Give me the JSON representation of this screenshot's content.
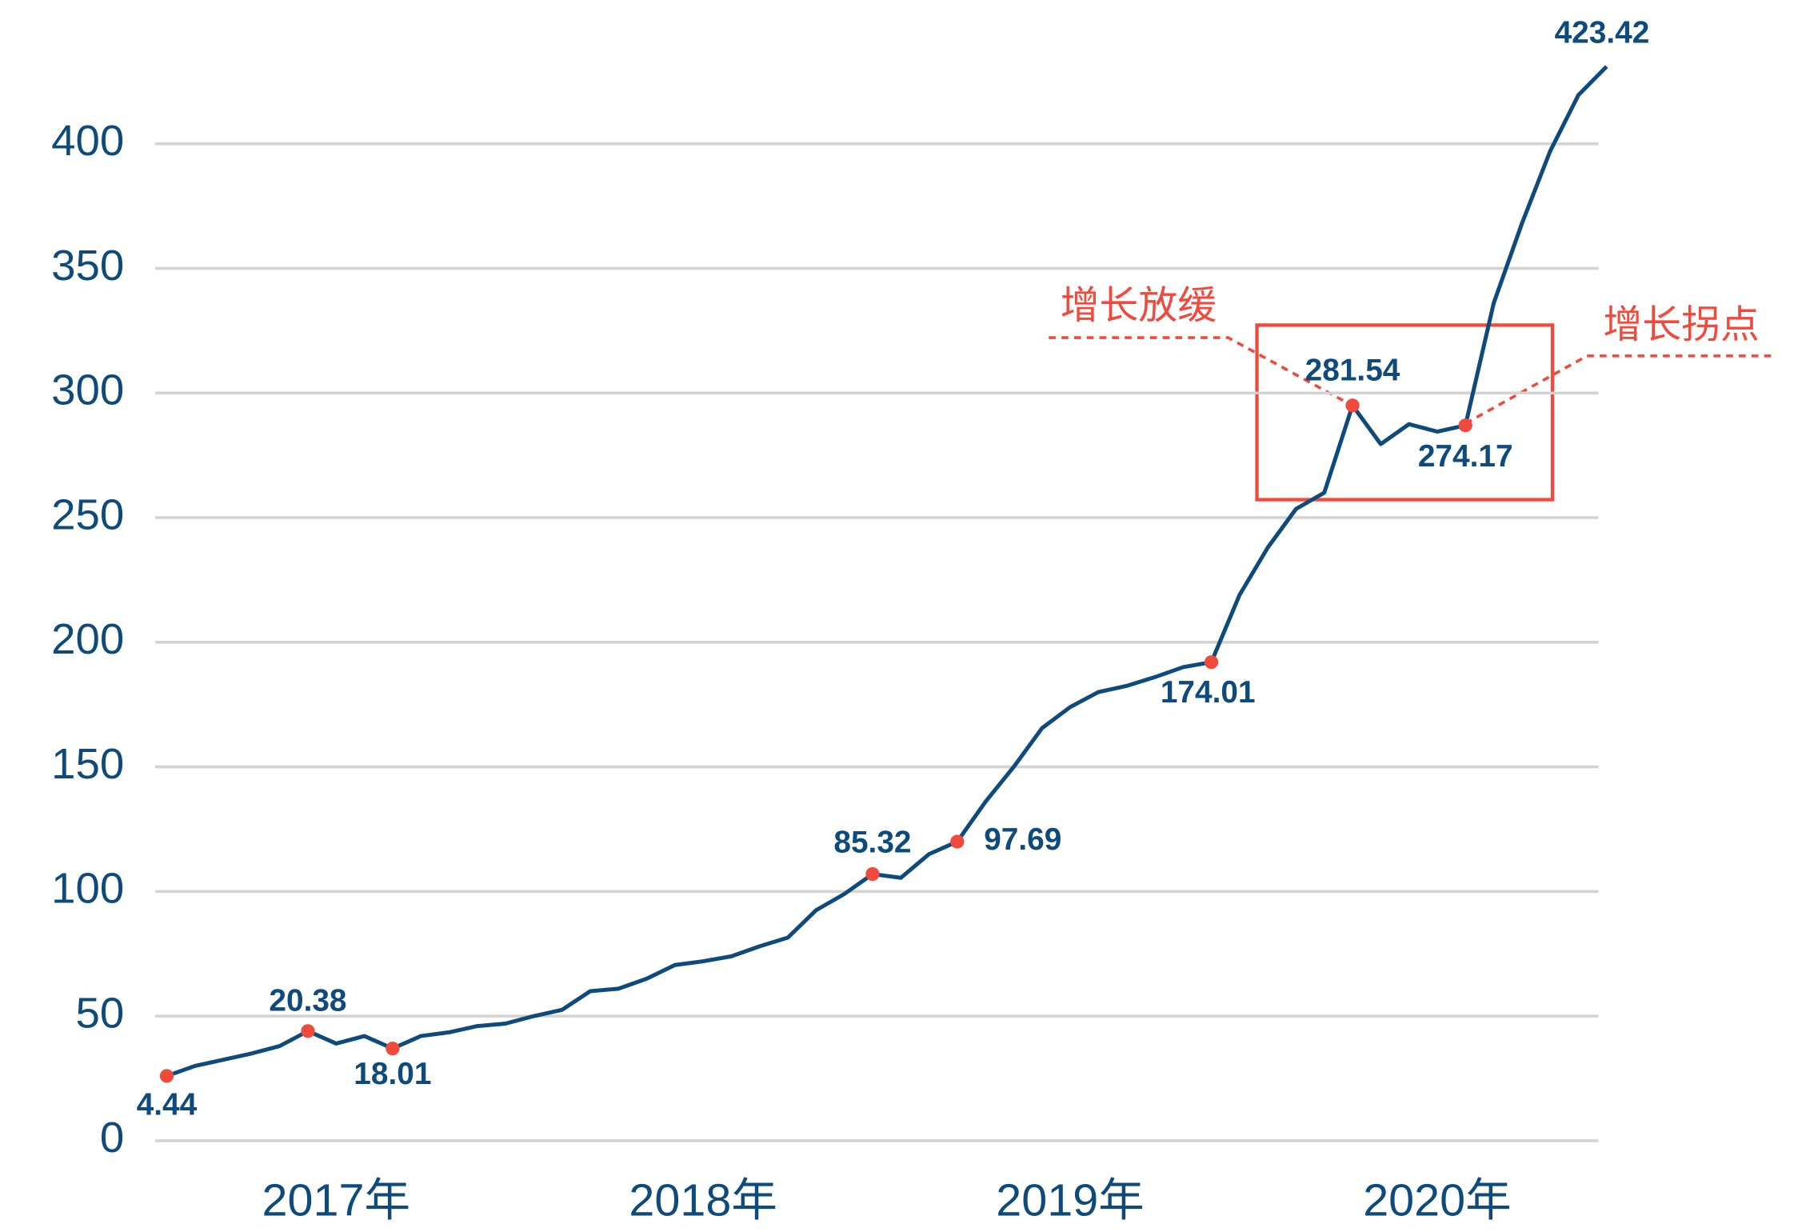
{
  "chart_data": {
    "type": "line",
    "categories": [
      null,
      null,
      null,
      null,
      null,
      null,
      "2017年",
      null,
      null,
      null,
      null,
      null,
      null,
      null,
      null,
      null,
      null,
      null,
      null,
      "2018年",
      null,
      null,
      null,
      null,
      null,
      null,
      null,
      null,
      null,
      null,
      null,
      null,
      "2019年",
      null,
      null,
      null,
      null,
      null,
      null,
      null,
      null,
      null,
      null,
      null,
      null,
      "2020年",
      null,
      null,
      null,
      null,
      null,
      null
    ],
    "values": [
      26,
      30,
      32.5,
      35,
      38,
      44,
      39,
      42,
      37,
      42,
      43.5,
      46,
      47,
      50,
      52.5,
      60,
      61,
      65,
      70.5,
      72,
      74,
      78,
      81.5,
      92.5,
      99,
      107,
      105.5,
      115,
      120,
      136,
      150,
      165.5,
      174,
      180,
      182.5,
      186,
      190,
      192,
      219,
      238,
      253.5,
      260,
      295,
      279.5,
      287.5,
      284.5,
      287,
      336,
      368,
      397,
      419.5,
      431
    ],
    "color": "#0e4b7c",
    "highlight_color": "#f04a3c",
    "annotations": [
      "4.44",
      "20.38",
      "18.01",
      "85.32",
      "97.69",
      "174.01",
      "281.54",
      "274.17",
      "423.42"
    ],
    "callouts": [
      "增长放缓",
      "增长拐点"
    ],
    "ylim": [
      0,
      400
    ],
    "yticks": [
      0,
      50,
      100,
      150,
      200,
      250,
      300,
      350,
      400
    ],
    "grid": true
  }
}
